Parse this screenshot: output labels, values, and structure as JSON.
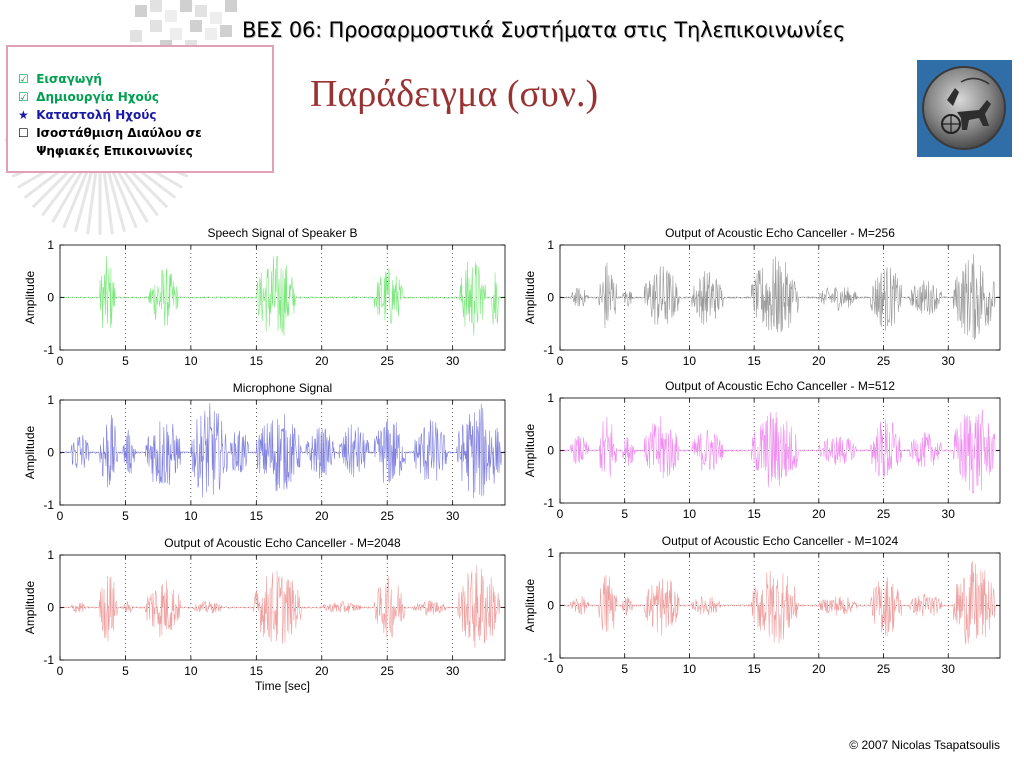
{
  "header": {
    "course_title": "ΒΕΣ 06: Προσαρμοστικά Συστήματα στις Τηλεπικοινωνίες",
    "slide_title": "Παράδειγμα (συν.)"
  },
  "outline": {
    "items": [
      {
        "mark": "☑",
        "label": "Εισαγωγή",
        "color": "#00a050"
      },
      {
        "mark": "☑",
        "label": "Δημιουργία Ηχούς",
        "color": "#00a050"
      },
      {
        "mark": "★",
        "label": "Καταστολή Ηχούς",
        "color": "#1a1aa6"
      },
      {
        "mark": "☐",
        "label": "Ισοστάθμιση Διαύλου σε",
        "color": "#000000"
      },
      {
        "mark": "",
        "label": "Ψηφιακές Επικοινωνίες",
        "color": "#000000"
      }
    ]
  },
  "footer": {
    "copyright": "© 2007 Nicolas Tsapatsoulis"
  },
  "chart_data": [
    {
      "type": "line",
      "title": "Speech Signal of Speaker B",
      "ylabel": "Amplitude",
      "xlabel": "",
      "xlim": [
        0,
        34
      ],
      "ylim": [
        -1,
        1
      ],
      "xticks": [
        "0",
        "5",
        "10",
        "15",
        "20",
        "25",
        "30"
      ],
      "yticks": [
        "-1",
        "0",
        "1"
      ],
      "grid": true,
      "color": "#7de87d",
      "bursts": [
        {
          "start": 3,
          "end": 4.2,
          "amp": 0.8
        },
        {
          "start": 6.8,
          "end": 9,
          "amp": 0.6
        },
        {
          "start": 15,
          "end": 18,
          "amp": 0.85
        },
        {
          "start": 24,
          "end": 26.2,
          "amp": 0.6
        },
        {
          "start": 30.5,
          "end": 32.5,
          "amp": 0.8
        },
        {
          "start": 33,
          "end": 33.5,
          "amp": 0.95
        }
      ]
    },
    {
      "type": "line",
      "title": "Output of Acoustic Echo Canceller - M=256",
      "ylabel": "Amplitude",
      "xlabel": "",
      "xlim": [
        0,
        34
      ],
      "ylim": [
        -1,
        1
      ],
      "xticks": [
        "0",
        "5",
        "10",
        "15",
        "20",
        "25",
        "30"
      ],
      "yticks": [
        "-1",
        "0",
        "1"
      ],
      "grid": true,
      "color": "#9a9a9a",
      "bursts": [
        {
          "start": 0.8,
          "end": 2.2,
          "amp": 0.2
        },
        {
          "start": 3,
          "end": 4.4,
          "amp": 0.75
        },
        {
          "start": 4.8,
          "end": 5.6,
          "amp": 0.2
        },
        {
          "start": 6.5,
          "end": 9.2,
          "amp": 0.65
        },
        {
          "start": 10.2,
          "end": 12.6,
          "amp": 0.55
        },
        {
          "start": 14.8,
          "end": 18.4,
          "amp": 0.8
        },
        {
          "start": 20,
          "end": 23,
          "amp": 0.25
        },
        {
          "start": 24,
          "end": 26.4,
          "amp": 0.65
        },
        {
          "start": 27,
          "end": 29.5,
          "amp": 0.35
        },
        {
          "start": 30.4,
          "end": 33.6,
          "amp": 0.85
        }
      ]
    },
    {
      "type": "line",
      "title": "Microphone Signal",
      "ylabel": "Amplitude",
      "xlabel": "",
      "xlim": [
        0,
        34
      ],
      "ylim": [
        -1,
        1
      ],
      "xticks": [
        "0",
        "5",
        "10",
        "15",
        "20",
        "25",
        "30"
      ],
      "yticks": [
        "-1",
        "0",
        "1"
      ],
      "grid": true,
      "color": "#8080e0",
      "bursts": [
        {
          "start": 0.8,
          "end": 2.2,
          "amp": 0.45
        },
        {
          "start": 3,
          "end": 4.4,
          "amp": 0.8
        },
        {
          "start": 4.8,
          "end": 5.8,
          "amp": 0.45
        },
        {
          "start": 6.5,
          "end": 9.2,
          "amp": 0.75
        },
        {
          "start": 10,
          "end": 12.8,
          "amp": 0.95
        },
        {
          "start": 13,
          "end": 14.4,
          "amp": 0.5
        },
        {
          "start": 15,
          "end": 18.4,
          "amp": 0.8
        },
        {
          "start": 18.8,
          "end": 21,
          "amp": 0.5
        },
        {
          "start": 21.3,
          "end": 23.6,
          "amp": 0.55
        },
        {
          "start": 24,
          "end": 26.4,
          "amp": 0.7
        },
        {
          "start": 27,
          "end": 29.6,
          "amp": 0.65
        },
        {
          "start": 30.3,
          "end": 33.7,
          "amp": 0.95
        }
      ]
    },
    {
      "type": "line",
      "title": "Output of Acoustic Echo Canceller - M=512",
      "ylabel": "Amplitude",
      "xlabel": "",
      "xlim": [
        0,
        34
      ],
      "ylim": [
        -1,
        1
      ],
      "xticks": [
        "0",
        "5",
        "10",
        "15",
        "20",
        "25",
        "30"
      ],
      "yticks": [
        "-1",
        "0",
        "1"
      ],
      "grid": true,
      "color": "#f08ef0",
      "bursts": [
        {
          "start": 0.8,
          "end": 2.2,
          "amp": 0.3
        },
        {
          "start": 3,
          "end": 4.4,
          "amp": 0.75
        },
        {
          "start": 4.8,
          "end": 5.8,
          "amp": 0.3
        },
        {
          "start": 6.5,
          "end": 9.2,
          "amp": 0.65
        },
        {
          "start": 10.2,
          "end": 12.6,
          "amp": 0.45
        },
        {
          "start": 14.8,
          "end": 18.4,
          "amp": 0.8
        },
        {
          "start": 20,
          "end": 23,
          "amp": 0.3
        },
        {
          "start": 24,
          "end": 26.4,
          "amp": 0.65
        },
        {
          "start": 27,
          "end": 29.5,
          "amp": 0.35
        },
        {
          "start": 30.4,
          "end": 33.6,
          "amp": 0.9
        }
      ]
    },
    {
      "type": "line",
      "title": "Output of Acoustic Echo Canceller - M=2048",
      "ylabel": "Amplitude",
      "xlabel": "Time [sec]",
      "xlim": [
        0,
        34
      ],
      "ylim": [
        -1,
        1
      ],
      "xticks": [
        "0",
        "5",
        "10",
        "15",
        "20",
        "25",
        "30"
      ],
      "yticks": [
        "-1",
        "0",
        "1"
      ],
      "grid": true,
      "color": "#f0a0a0",
      "bursts": [
        {
          "start": 0.8,
          "end": 2,
          "amp": 0.12
        },
        {
          "start": 3,
          "end": 4.4,
          "amp": 0.7
        },
        {
          "start": 4.8,
          "end": 5.6,
          "amp": 0.12
        },
        {
          "start": 6.5,
          "end": 9.2,
          "amp": 0.6
        },
        {
          "start": 10.2,
          "end": 12.4,
          "amp": 0.12
        },
        {
          "start": 14.8,
          "end": 18.4,
          "amp": 0.75
        },
        {
          "start": 20,
          "end": 23,
          "amp": 0.12
        },
        {
          "start": 24,
          "end": 26.4,
          "amp": 0.6
        },
        {
          "start": 27,
          "end": 29.5,
          "amp": 0.15
        },
        {
          "start": 30.4,
          "end": 33.6,
          "amp": 0.85
        }
      ]
    },
    {
      "type": "line",
      "title": "Output of Acoustic Echo Canceller - M=1024",
      "ylabel": "Amplitude",
      "xlabel": "",
      "xlim": [
        0,
        34
      ],
      "ylim": [
        -1,
        1
      ],
      "xticks": [
        "0",
        "5",
        "10",
        "15",
        "20",
        "25",
        "30"
      ],
      "yticks": [
        "-1",
        "0",
        "1"
      ],
      "grid": true,
      "color": "#f0a0a0",
      "bursts": [
        {
          "start": 0.8,
          "end": 2.2,
          "amp": 0.2
        },
        {
          "start": 3,
          "end": 4.4,
          "amp": 0.7
        },
        {
          "start": 4.8,
          "end": 5.6,
          "amp": 0.2
        },
        {
          "start": 6.5,
          "end": 9.2,
          "amp": 0.6
        },
        {
          "start": 10.2,
          "end": 12.4,
          "amp": 0.2
        },
        {
          "start": 14.8,
          "end": 18.4,
          "amp": 0.75
        },
        {
          "start": 20,
          "end": 23,
          "amp": 0.2
        },
        {
          "start": 24,
          "end": 26.4,
          "amp": 0.6
        },
        {
          "start": 27,
          "end": 29.5,
          "amp": 0.25
        },
        {
          "start": 30.4,
          "end": 33.6,
          "amp": 0.85
        }
      ]
    }
  ]
}
